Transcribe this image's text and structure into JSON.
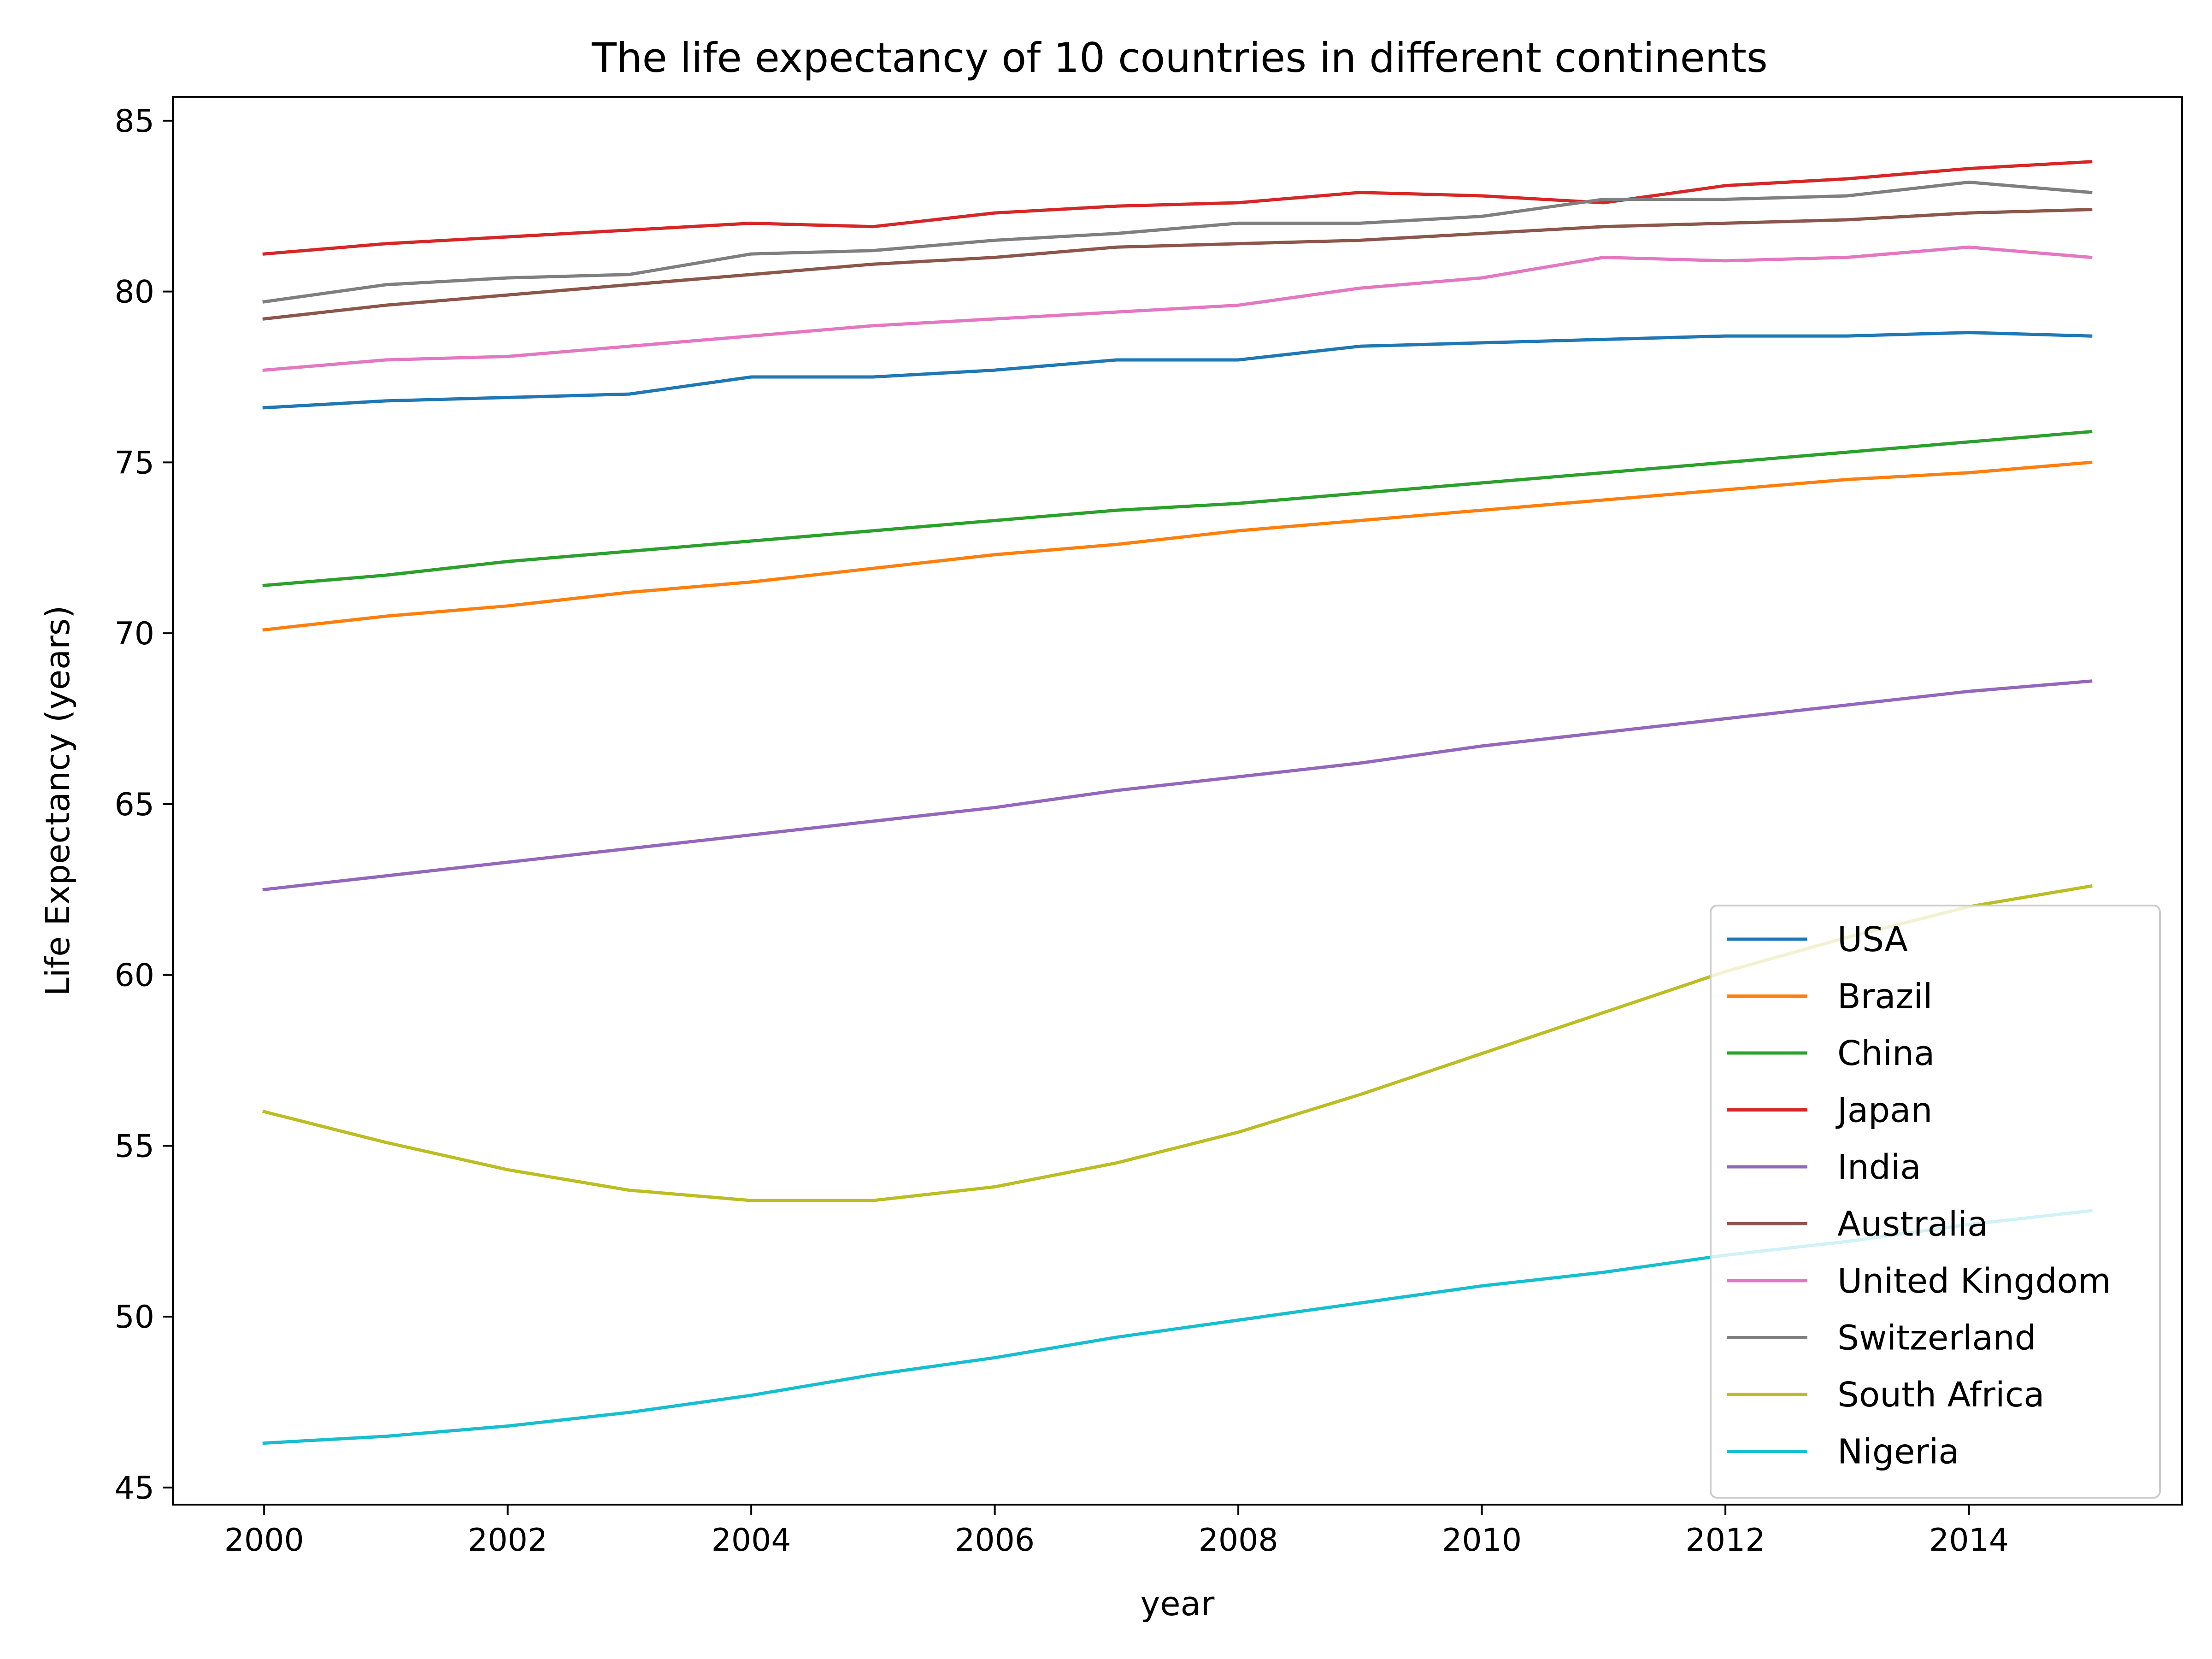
{
  "chart_data": {
    "type": "line",
    "title": "The life expectancy of 10 countries in different continents",
    "xlabel": "year",
    "ylabel": "Life Expectancy (years)",
    "xlim": [
      1999.25,
      2015.75
    ],
    "ylim": [
      44.5,
      85.7
    ],
    "xticks": [
      2000,
      2002,
      2004,
      2006,
      2008,
      2010,
      2012,
      2014
    ],
    "yticks": [
      45,
      50,
      55,
      60,
      65,
      70,
      75,
      80,
      85
    ],
    "grid": false,
    "legend_position": "lower-right",
    "x": [
      2000,
      2001,
      2002,
      2003,
      2004,
      2005,
      2006,
      2007,
      2008,
      2009,
      2010,
      2011,
      2012,
      2013,
      2014,
      2015
    ],
    "series": [
      {
        "name": "USA",
        "color": "#1f77b4",
        "values": [
          76.6,
          76.8,
          76.9,
          77.0,
          77.5,
          77.5,
          77.7,
          78.0,
          78.0,
          78.4,
          78.5,
          78.6,
          78.7,
          78.7,
          78.8,
          78.7
        ]
      },
      {
        "name": "Brazil",
        "color": "#ff7f0e",
        "values": [
          70.1,
          70.5,
          70.8,
          71.2,
          71.5,
          71.9,
          72.3,
          72.6,
          73.0,
          73.3,
          73.6,
          73.9,
          74.2,
          74.5,
          74.7,
          75.0
        ]
      },
      {
        "name": "China",
        "color": "#2ca02c",
        "values": [
          71.4,
          71.7,
          72.1,
          72.4,
          72.7,
          73.0,
          73.3,
          73.6,
          73.8,
          74.1,
          74.4,
          74.7,
          75.0,
          75.3,
          75.6,
          75.9
        ]
      },
      {
        "name": "Japan",
        "color": "#d62728",
        "values": [
          81.1,
          81.4,
          81.6,
          81.8,
          82.0,
          81.9,
          82.3,
          82.5,
          82.6,
          82.9,
          82.8,
          82.6,
          83.1,
          83.3,
          83.6,
          83.8
        ]
      },
      {
        "name": "India",
        "color": "#9467bd",
        "values": [
          62.5,
          62.9,
          63.3,
          63.7,
          64.1,
          64.5,
          64.9,
          65.4,
          65.8,
          66.2,
          66.7,
          67.1,
          67.5,
          67.9,
          68.3,
          68.6
        ]
      },
      {
        "name": "Australia",
        "color": "#8c564b",
        "values": [
          79.2,
          79.6,
          79.9,
          80.2,
          80.5,
          80.8,
          81.0,
          81.3,
          81.4,
          81.5,
          81.7,
          81.9,
          82.0,
          82.1,
          82.3,
          82.4
        ]
      },
      {
        "name": "United Kingdom",
        "color": "#e377c2",
        "values": [
          77.7,
          78.0,
          78.1,
          78.4,
          78.7,
          79.0,
          79.2,
          79.4,
          79.6,
          80.1,
          80.4,
          81.0,
          80.9,
          81.0,
          81.3,
          81.0
        ]
      },
      {
        "name": "Switzerland",
        "color": "#7f7f7f",
        "values": [
          79.7,
          80.2,
          80.4,
          80.5,
          81.1,
          81.2,
          81.5,
          81.7,
          82.0,
          82.0,
          82.2,
          82.7,
          82.7,
          82.8,
          83.2,
          82.9
        ]
      },
      {
        "name": "South Africa",
        "color": "#bcbd22",
        "values": [
          56.0,
          55.1,
          54.3,
          53.7,
          53.4,
          53.4,
          53.8,
          54.5,
          55.4,
          56.5,
          57.7,
          58.9,
          60.1,
          61.1,
          62.0,
          62.6
        ]
      },
      {
        "name": "Nigeria",
        "color": "#17becf",
        "values": [
          46.3,
          46.5,
          46.8,
          47.2,
          47.7,
          48.3,
          48.8,
          49.4,
          49.9,
          50.4,
          50.9,
          51.3,
          51.8,
          52.2,
          52.7,
          53.1
        ]
      }
    ]
  }
}
